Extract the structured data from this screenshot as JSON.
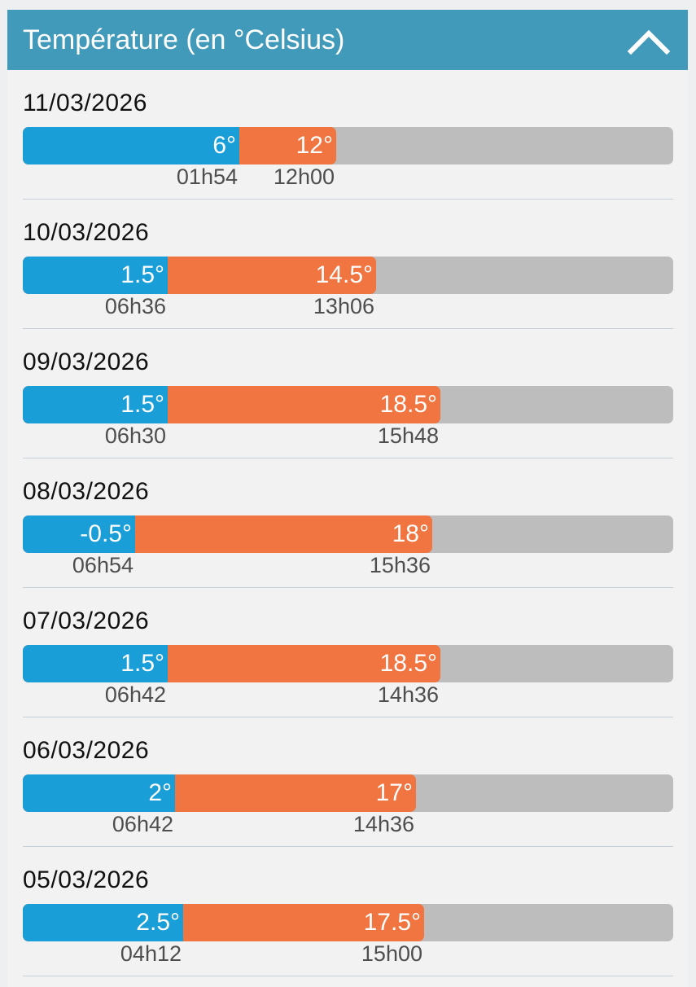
{
  "header": {
    "title": "Température (en °Celsius)",
    "collapse_icon": "chevron-up-icon"
  },
  "colors": {
    "header_bg": "#419ab9",
    "min_bar": "#1a9ed8",
    "max_bar": "#f07540",
    "track": "#bdbdbd"
  },
  "scale": {
    "min": -7.5,
    "max": 33.0
  },
  "days": [
    {
      "date": "11/03/2026",
      "min": 6,
      "min_label": "6°",
      "min_time": "01h54",
      "max": 12,
      "max_label": "12°",
      "max_time": "12h00"
    },
    {
      "date": "10/03/2026",
      "min": 1.5,
      "min_label": "1.5°",
      "min_time": "06h36",
      "max": 14.5,
      "max_label": "14.5°",
      "max_time": "13h06"
    },
    {
      "date": "09/03/2026",
      "min": 1.5,
      "min_label": "1.5°",
      "min_time": "06h30",
      "max": 18.5,
      "max_label": "18.5°",
      "max_time": "15h48"
    },
    {
      "date": "08/03/2026",
      "min": -0.5,
      "min_label": "-0.5°",
      "min_time": "06h54",
      "max": 18,
      "max_label": "18°",
      "max_time": "15h36"
    },
    {
      "date": "07/03/2026",
      "min": 1.5,
      "min_label": "1.5°",
      "min_time": "06h42",
      "max": 18.5,
      "max_label": "18.5°",
      "max_time": "14h36"
    },
    {
      "date": "06/03/2026",
      "min": 2,
      "min_label": "2°",
      "min_time": "06h42",
      "max": 17,
      "max_label": "17°",
      "max_time": "14h36"
    },
    {
      "date": "05/03/2026",
      "min": 2.5,
      "min_label": "2.5°",
      "min_time": "04h12",
      "max": 17.5,
      "max_label": "17.5°",
      "max_time": "15h00"
    }
  ]
}
